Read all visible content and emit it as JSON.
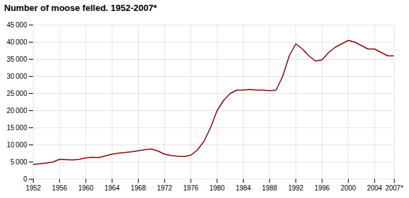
{
  "chart_data": {
    "type": "line",
    "title": "Number of moose felled. 1952-2007*",
    "x": [
      1952,
      1953,
      1954,
      1955,
      1956,
      1957,
      1958,
      1959,
      1960,
      1961,
      1962,
      1963,
      1964,
      1965,
      1966,
      1967,
      1968,
      1969,
      1970,
      1971,
      1972,
      1973,
      1974,
      1975,
      1976,
      1977,
      1978,
      1979,
      1980,
      1981,
      1982,
      1983,
      1984,
      1985,
      1986,
      1987,
      1988,
      1989,
      1990,
      1991,
      1992,
      1993,
      1994,
      1995,
      1996,
      1997,
      1998,
      1999,
      2000,
      2001,
      2002,
      2003,
      2004,
      2005,
      2006,
      2007
    ],
    "values": [
      4300,
      4500,
      4700,
      5000,
      5800,
      5700,
      5600,
      5800,
      6200,
      6400,
      6300,
      6800,
      7300,
      7600,
      7800,
      8000,
      8300,
      8600,
      8800,
      8200,
      7300,
      6900,
      6700,
      6600,
      7000,
      8500,
      11000,
      15000,
      20000,
      23000,
      25000,
      26000,
      26000,
      26200,
      26000,
      26000,
      25800,
      26000,
      30000,
      36000,
      39500,
      38000,
      36000,
      34500,
      34800,
      37000,
      38500,
      39500,
      40500,
      40000,
      39000,
      38000,
      38000,
      37000,
      36000,
      36000
    ],
    "color": "#8B0000",
    "xlim": [
      1952,
      2007
    ],
    "ylim": [
      0,
      45000
    ],
    "xticks": [
      1952,
      1956,
      1960,
      1964,
      1968,
      1972,
      1976,
      1980,
      1984,
      1988,
      1992,
      1996,
      2000,
      2004,
      {
        "value": 2007,
        "label": "2007*"
      }
    ],
    "yticks": [
      0,
      {
        "value": 5000,
        "label": "5 000"
      },
      {
        "value": 10000,
        "label": "10 000"
      },
      {
        "value": 15000,
        "label": "15 000"
      },
      {
        "value": 20000,
        "label": "20 000"
      },
      {
        "value": 25000,
        "label": "25 000"
      },
      {
        "value": 30000,
        "label": "30 000"
      },
      {
        "value": 35000,
        "label": "35 000"
      },
      {
        "value": 40000,
        "label": "40 000"
      },
      {
        "value": 45000,
        "label": "45 000"
      }
    ],
    "grid": true
  }
}
